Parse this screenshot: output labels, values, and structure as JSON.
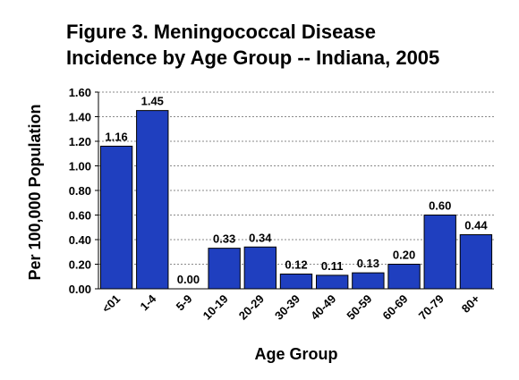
{
  "chart_data": {
    "type": "bar",
    "title_lines": [
      "Figure 3.  Meningococcal Disease",
      "Incidence by Age Group -- Indiana, 2005"
    ],
    "xlabel": "Age Group",
    "ylabel": "Per 100,000 Population",
    "categories": [
      "<01",
      "1-4",
      "5-9",
      "10-19",
      "20-29",
      "30-39",
      "40-49",
      "50-59",
      "60-69",
      "70-79",
      "80+"
    ],
    "values": [
      1.16,
      1.45,
      0.0,
      0.33,
      0.34,
      0.12,
      0.11,
      0.13,
      0.2,
      0.6,
      0.44
    ],
    "value_labels": [
      "1.16",
      "1.45",
      "0.00",
      "0.33",
      "0.34",
      "0.12",
      "0.11",
      "0.13",
      "0.20",
      "0.60",
      "0.44"
    ],
    "yticks": [
      "0.00",
      "0.20",
      "0.40",
      "0.60",
      "0.80",
      "1.00",
      "1.20",
      "1.40",
      "1.60"
    ],
    "ylim": [
      0,
      1.6
    ],
    "grid": true,
    "bar_color": "#1f3fbf"
  }
}
